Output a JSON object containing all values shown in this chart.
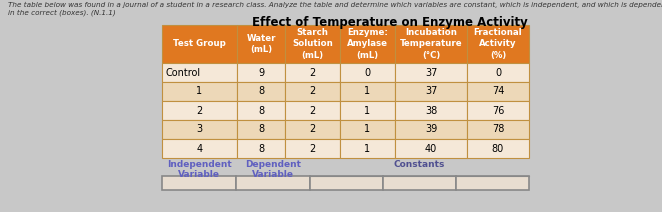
{
  "title": "Effect of Temperature on Enzyme Activity",
  "header_bg": "#E07820",
  "header_text": "#FFFFFF",
  "row_bg_light": "#F5E8D8",
  "row_bg_darker": "#EDD8B8",
  "fig_bg": "#C8C8C8",
  "table_border": "#C09040",
  "col_headers": [
    "Test Group",
    "Water\n(mL)",
    "Starch\nSolution\n(mL)",
    "Enzyme:\nAmylase\n(mL)",
    "Incubation\nTemperature\n(°C)",
    "Fractional\nActivity\n(%)"
  ],
  "rows": [
    [
      "Control",
      "9",
      "2",
      "0",
      "37",
      "0"
    ],
    [
      "1",
      "8",
      "2",
      "1",
      "37",
      "74"
    ],
    [
      "2",
      "8",
      "2",
      "1",
      "38",
      "76"
    ],
    [
      "3",
      "8",
      "2",
      "1",
      "39",
      "78"
    ],
    [
      "4",
      "8",
      "2",
      "1",
      "40",
      "80"
    ]
  ],
  "footer_labels": [
    "Independent\nVariable",
    "Dependent\nVariable",
    "Constants"
  ],
  "instruction_text": "The table below was found in a journal of a student in a research class. Analyze the table and determine which variables are constant, which is independent, and which is dependent then place them",
  "sub_text": "in the correct (boxes). (N.1.1)",
  "footer_label_color": "#6060C0",
  "constants_label_color": "#505090"
}
